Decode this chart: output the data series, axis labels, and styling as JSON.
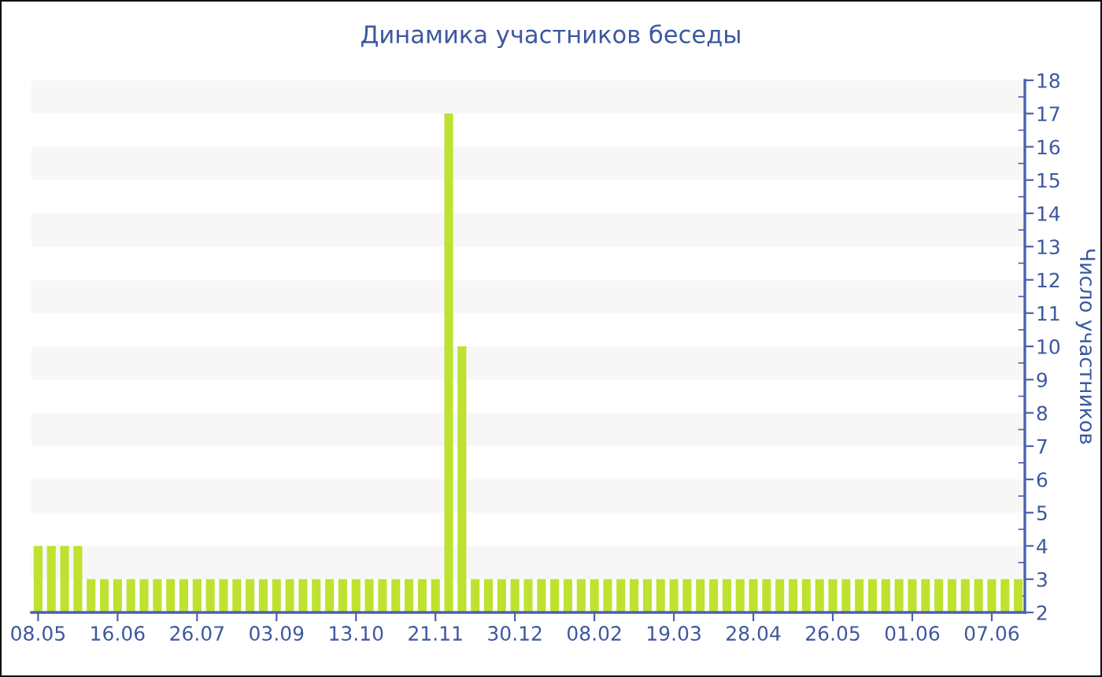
{
  "chart_data": {
    "type": "bar",
    "title": "Динамика участников беседы",
    "ylabel": "Число участников",
    "categories": [
      "08.05",
      null,
      null,
      null,
      null,
      null,
      "16.06",
      null,
      null,
      null,
      null,
      null,
      "26.07",
      null,
      null,
      null,
      null,
      null,
      "03.09",
      null,
      null,
      null,
      null,
      null,
      "13.10",
      null,
      null,
      null,
      null,
      null,
      "21.11",
      null,
      null,
      null,
      null,
      null,
      "30.12",
      null,
      null,
      null,
      null,
      null,
      "08.02",
      null,
      null,
      null,
      null,
      null,
      "19.03",
      null,
      null,
      null,
      null,
      null,
      "28.04",
      null,
      null,
      null,
      null,
      null,
      "26.05",
      null,
      null,
      null,
      null,
      null,
      "01.06",
      null,
      null,
      null,
      null,
      null,
      "07.06",
      null,
      null
    ],
    "values": [
      4,
      4,
      4,
      4,
      3,
      3,
      3,
      3,
      3,
      3,
      3,
      3,
      3,
      3,
      3,
      3,
      3,
      3,
      3,
      3,
      3,
      3,
      3,
      3,
      3,
      3,
      3,
      3,
      3,
      3,
      3,
      17,
      10,
      3,
      3,
      3,
      3,
      3,
      3,
      3,
      3,
      3,
      3,
      3,
      3,
      3,
      3,
      3,
      3,
      3,
      3,
      3,
      3,
      3,
      3,
      3,
      3,
      3,
      3,
      3,
      3,
      3,
      3,
      3,
      3,
      3,
      3,
      3,
      3,
      3,
      3,
      3,
      3,
      3,
      3
    ],
    "color": "#bde22f",
    "ylim": [
      2,
      18
    ],
    "yticks": [
      2,
      3,
      4,
      5,
      6,
      7,
      8,
      9,
      10,
      11,
      12,
      13,
      14,
      15,
      16,
      17,
      18
    ],
    "bands": [
      {
        "axis": "y",
        "from": 3,
        "to": 4,
        "color": "#f7f7f7"
      },
      {
        "axis": "y",
        "from": 5,
        "to": 6,
        "color": "#f7f7f7"
      },
      {
        "axis": "y",
        "from": 7,
        "to": 8,
        "color": "#f7f7f7"
      },
      {
        "axis": "y",
        "from": 9,
        "to": 10,
        "color": "#f7f7f7"
      },
      {
        "axis": "y",
        "from": 11,
        "to": 12,
        "color": "#f7f7f7"
      },
      {
        "axis": "y",
        "from": 13,
        "to": 14,
        "color": "#f7f7f7"
      },
      {
        "axis": "y",
        "from": 15,
        "to": 16,
        "color": "#f7f7f7"
      },
      {
        "axis": "y",
        "from": 17,
        "to": 18,
        "color": "#f7f7f7"
      }
    ]
  }
}
